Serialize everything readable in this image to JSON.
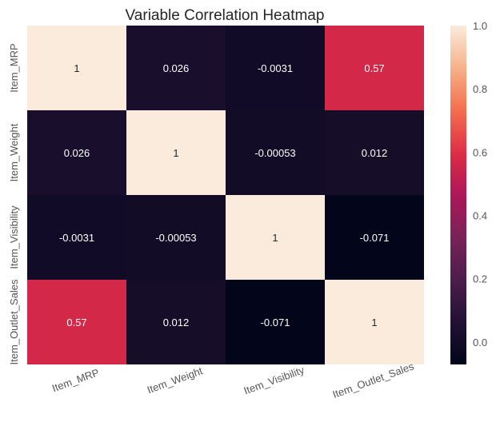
{
  "chart_data": {
    "type": "heatmap",
    "title": "Variable Correlation Heatmap",
    "xlabel": "",
    "ylabel": "",
    "x_labels": [
      "Item_MRP",
      "Item_Weight",
      "Item_Visibility",
      "Item_Outlet_Sales"
    ],
    "y_labels": [
      "Item_MRP",
      "Item_Weight",
      "Item_Visibility",
      "Item_Outlet_Sales"
    ],
    "values": [
      [
        1,
        0.026,
        -0.0031,
        0.57
      ],
      [
        0.026,
        1,
        -0.00053,
        0.012
      ],
      [
        -0.0031,
        -0.00053,
        1,
        -0.071
      ],
      [
        0.57,
        0.012,
        -0.071,
        1
      ]
    ],
    "annotations": [
      [
        "1",
        "0.026",
        "-0.0031",
        "0.57"
      ],
      [
        "0.026",
        "1",
        "-0.00053",
        "0.012"
      ],
      [
        "-0.0031",
        "-0.00053",
        "1",
        "-0.071"
      ],
      [
        "0.57",
        "0.012",
        "-0.071",
        "1"
      ]
    ],
    "colorbar": {
      "range": [
        -0.071,
        1.0
      ],
      "ticks": [
        0.0,
        0.2,
        0.4,
        0.6,
        0.8,
        1.0
      ],
      "tick_labels": [
        "0.0",
        "0.2",
        "0.4",
        "0.6",
        "0.8",
        "1.0"
      ],
      "colormap": "rocket"
    },
    "x_tick_rotation": "angled"
  }
}
